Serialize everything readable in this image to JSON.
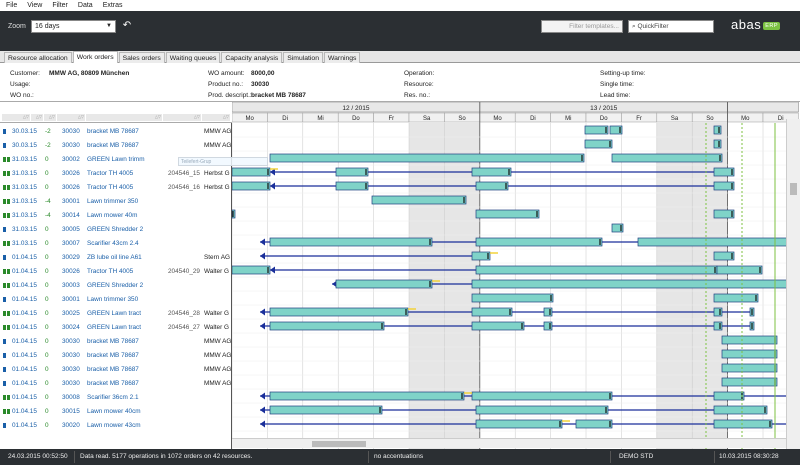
{
  "menu": [
    "File",
    "View",
    "Filter",
    "Data",
    "Extras"
  ],
  "toolbar": {
    "zoom_label": "Zoom",
    "zoom_value": "16 days",
    "filter_placeholder": "Filter templates...",
    "quickfilter_placeholder": "QuickFilter",
    "logo_text": "abas",
    "logo_badge": "ERP"
  },
  "tabs": [
    "Resource allocation",
    "Work orders",
    "Sales orders",
    "Waiting queues",
    "Capacity analysis",
    "Simulation",
    "Warnings"
  ],
  "active_tab": 1,
  "info": {
    "customer_label": "Customer:",
    "customer_value": "MMW AG, 80809 München",
    "usage_label": "Usage:",
    "wo_no_label": "WO no.:",
    "wo_amount_label": "WO amount:",
    "wo_amount_value": "8000,00",
    "product_label": "Product no.:",
    "product_value": "30030",
    "prod_descr_label": "Prod. descript.:",
    "prod_descr_value": "bracket MB 78687",
    "operation_label": "Operation:",
    "resource_label": "Resource:",
    "res_no_label": "Res. no.:",
    "setup_label": "Setting-up time:",
    "single_label": "Single time:",
    "lead_label": "Lead time:"
  },
  "column_headers": [
    "△▽",
    "△▽",
    "△▽",
    "△▽",
    "△▽",
    "△▽",
    "△▽"
  ],
  "weeks": [
    {
      "label": "12 / 2015"
    },
    {
      "label": "13 / 2015"
    },
    {
      "label": ""
    }
  ],
  "days": [
    "Mo",
    "Di",
    "Mi",
    "Do",
    "Fr",
    "Sa",
    "So",
    "Mo",
    "Di",
    "Mi",
    "Do",
    "Fr",
    "Sa",
    "So",
    "Mo",
    "Di"
  ],
  "rows": [
    {
      "date": "30.03.15",
      "dev": "-2",
      "no": "30030",
      "name": "bracket MB 78687",
      "ref": "",
      "cust": "MMW AG",
      "mk": "#1a5fa8"
    },
    {
      "date": "30.03.15",
      "dev": "-2",
      "no": "30030",
      "name": "bracket MB 78687",
      "ref": "",
      "cust": "MMW AG",
      "mk": "#1a5fa8"
    },
    {
      "date": "31.03.15",
      "dev": "0",
      "no": "30002",
      "name": "GREEN Lawn trimm",
      "ref": "",
      "cust": "",
      "mk": "#2a8a2a"
    },
    {
      "date": "31.03.15",
      "dev": "0",
      "no": "30026",
      "name": "Tractor TH 4005",
      "ref": "204546_15",
      "cust": "Herbst G",
      "mk": "#2a8a2a"
    },
    {
      "date": "31.03.15",
      "dev": "0",
      "no": "30026",
      "name": "Tractor TH 4005",
      "ref": "204546_16",
      "cust": "Herbst G",
      "mk": "#2a8a2a"
    },
    {
      "date": "31.03.15",
      "dev": "-4",
      "no": "30001",
      "name": "Lawn trimmer 350",
      "ref": "",
      "cust": "",
      "mk": "#2a8a2a"
    },
    {
      "date": "31.03.15",
      "dev": "-4",
      "no": "30014",
      "name": "Lawn mower 40m",
      "ref": "",
      "cust": "",
      "mk": "#2a8a2a"
    },
    {
      "date": "31.03.15",
      "dev": "0",
      "no": "30005",
      "name": "GREEN Shredder 2",
      "ref": "",
      "cust": "",
      "mk": "#1a5fa8"
    },
    {
      "date": "31.03.15",
      "dev": "0",
      "no": "30007",
      "name": "Scarifier 43cm 2.4",
      "ref": "",
      "cust": "",
      "mk": "#2a8a2a"
    },
    {
      "date": "01.04.15",
      "dev": "0",
      "no": "30029",
      "name": "ZB lube oil line A61",
      "ref": "",
      "cust": "Stern AG",
      "mk": "#1a5fa8"
    },
    {
      "date": "01.04.15",
      "dev": "0",
      "no": "30026",
      "name": "Tractor TH 4005",
      "ref": "204540_29",
      "cust": "Walter G",
      "mk": "#2a8a2a"
    },
    {
      "date": "01.04.15",
      "dev": "0",
      "no": "30003",
      "name": "GREEN Shredder 2",
      "ref": "",
      "cust": "",
      "mk": "#2a8a2a"
    },
    {
      "date": "01.04.15",
      "dev": "0",
      "no": "30001",
      "name": "Lawn trimmer 350",
      "ref": "",
      "cust": "",
      "mk": "#1a5fa8"
    },
    {
      "date": "01.04.15",
      "dev": "0",
      "no": "30025",
      "name": "GREEN Lawn tract",
      "ref": "204546_28",
      "cust": "Walter G",
      "mk": "#2a8a2a"
    },
    {
      "date": "01.04.15",
      "dev": "0",
      "no": "30024",
      "name": "GREEN Lawn tract",
      "ref": "204546_27",
      "cust": "Walter G",
      "mk": "#2a8a2a"
    },
    {
      "date": "01.04.15",
      "dev": "0",
      "no": "30030",
      "name": "bracket MB 78687",
      "ref": "",
      "cust": "MMW AG",
      "mk": "#1a5fa8"
    },
    {
      "date": "01.04.15",
      "dev": "0",
      "no": "30030",
      "name": "bracket MB 78687",
      "ref": "",
      "cust": "MMW AG",
      "mk": "#1a5fa8"
    },
    {
      "date": "01.04.15",
      "dev": "0",
      "no": "30030",
      "name": "bracket MB 78687",
      "ref": "",
      "cust": "MMW AG",
      "mk": "#1a5fa8"
    },
    {
      "date": "01.04.15",
      "dev": "0",
      "no": "30030",
      "name": "bracket MB 78687",
      "ref": "",
      "cust": "MMW AG",
      "mk": "#1a5fa8"
    },
    {
      "date": "01.04.15",
      "dev": "0",
      "no": "30008",
      "name": "Scarifier 36cm 2.1",
      "ref": "",
      "cust": "",
      "mk": "#2a8a2a"
    },
    {
      "date": "01.04.15",
      "dev": "0",
      "no": "30015",
      "name": "Lawn mower 40cm",
      "ref": "",
      "cust": "",
      "mk": "#2a8a2a"
    },
    {
      "date": "01.04.15",
      "dev": "0",
      "no": "30020",
      "name": "Lawn mower 43cm",
      "ref": "",
      "cust": "",
      "mk": "#1a5fa8"
    }
  ],
  "tooltip_text": "Teilefert-Grup",
  "status": {
    "time_left": "24.03.2015 00:52:50",
    "message": "Data read. 5177 operations in 1072 orders on 42 resources.",
    "accent": "no accentuations",
    "mode": "DEMO STD",
    "time_right": "10.03.2015 08:30:28"
  },
  "colors": {
    "toolbar_bg": "#2b2f33",
    "bar_fill": "#7fd3c8",
    "bar_stroke": "#1f3f7f",
    "line_blue": "#1a2f9a",
    "accent_yellow": "#f2d23a",
    "accent_green": "#7cc242",
    "weekend": "#e6e6e6"
  }
}
